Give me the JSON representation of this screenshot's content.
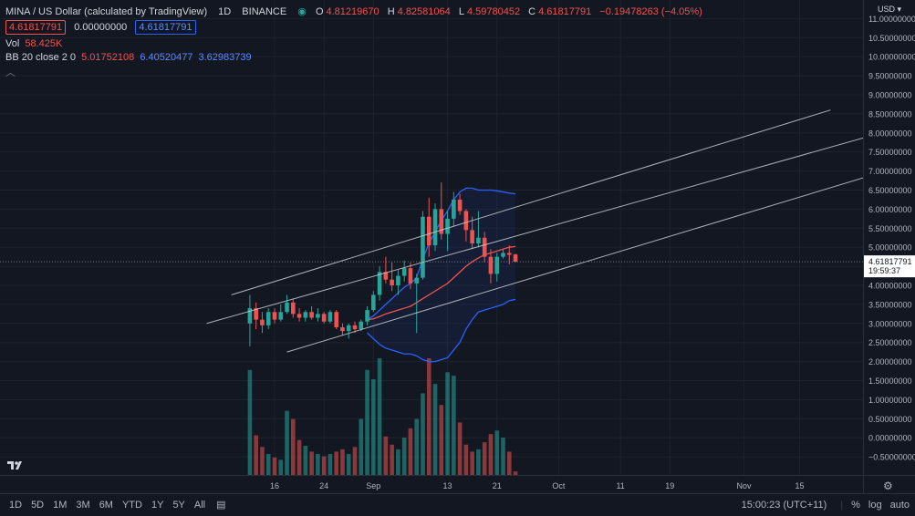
{
  "header": {
    "title": "MINA / US Dollar (calculated by TradingView)",
    "interval": "1D",
    "exchange": "BINANCE",
    "ohlc": [
      {
        "label": "O",
        "value": "4.81219670"
      },
      {
        "label": "H",
        "value": "4.82581064"
      },
      {
        "label": "L",
        "value": "4.59780452"
      },
      {
        "label": "C",
        "value": "4.61817791"
      }
    ],
    "change": "−0.19478263 (−4.05%)",
    "price_pills": [
      "4.61817791",
      "0.00000000",
      "4.61817791"
    ],
    "volume_label": "Vol",
    "volume_value": "58.425K",
    "bb_label": "BB 20 close 2 0",
    "bb_values": [
      "5.01752108",
      "6.40520477",
      "3.62983739"
    ]
  },
  "price_scale": {
    "currency": "USD",
    "last_price": "4.61817791",
    "countdown": "19:59:37"
  },
  "bottom_bar": {
    "timeframes": [
      "1D",
      "5D",
      "1M",
      "3M",
      "6M",
      "YTD",
      "1Y",
      "5Y",
      "All"
    ],
    "clock": "15:00:23 (UTC+11)",
    "percent": "%",
    "log": "log",
    "auto": "auto"
  },
  "colors": {
    "background": "#131722",
    "up": "#26a69a",
    "down": "#ef5350",
    "bb_band": "#2962ff",
    "bb_basis": "#ef5350",
    "channel": "#c8cbd2"
  },
  "chart_data": {
    "type": "candlestick",
    "x_tick_labels": [
      "16",
      "24",
      "Sep",
      "13",
      "21",
      "Oct",
      "11",
      "19",
      "Nov",
      "15"
    ],
    "y_tick_labels": [
      "11.00000000",
      "10.50000000",
      "10.00000000",
      "9.50000000",
      "9.00000000",
      "8.50000000",
      "8.00000000",
      "7.50000000",
      "7.00000000",
      "6.50000000",
      "6.00000000",
      "5.50000000",
      "5.00000000",
      "4.50000000",
      "4.00000000",
      "3.50000000",
      "3.00000000",
      "2.50000000",
      "2.00000000",
      "1.50000000",
      "1.00000000",
      "0.50000000",
      "0.00000000",
      "−0.50000000"
    ],
    "ylim": [
      -1.0,
      11.2
    ],
    "x_tick_day_index": [
      0,
      8,
      16,
      28,
      36,
      46,
      56,
      64,
      76,
      85
    ],
    "first_candle_day": -4,
    "candles": [
      [
        3.0,
        3.75,
        2.4,
        3.4
      ],
      [
        3.4,
        3.55,
        2.85,
        3.1
      ],
      [
        3.1,
        3.3,
        2.75,
        2.95
      ],
      [
        2.95,
        3.4,
        2.85,
        3.3
      ],
      [
        3.3,
        3.4,
        3.0,
        3.1
      ],
      [
        3.1,
        3.5,
        3.05,
        3.3
      ],
      [
        3.3,
        3.75,
        3.25,
        3.55
      ],
      [
        3.55,
        3.65,
        3.15,
        3.25
      ],
      [
        3.25,
        3.4,
        3.05,
        3.15
      ],
      [
        3.15,
        3.35,
        3.05,
        3.3
      ],
      [
        3.3,
        3.45,
        3.1,
        3.15
      ],
      [
        3.15,
        3.4,
        3.05,
        3.25
      ],
      [
        3.25,
        3.3,
        3.0,
        3.05
      ],
      [
        3.05,
        3.35,
        3.0,
        3.3
      ],
      [
        3.3,
        3.35,
        2.85,
        2.9
      ],
      [
        2.9,
        3.0,
        2.7,
        2.8
      ],
      [
        2.8,
        3.0,
        2.6,
        2.95
      ],
      [
        2.95,
        3.05,
        2.75,
        2.85
      ],
      [
        2.85,
        3.1,
        2.8,
        3.05
      ],
      [
        3.05,
        3.45,
        2.95,
        3.35
      ],
      [
        3.35,
        3.85,
        3.3,
        3.75
      ],
      [
        3.75,
        4.5,
        3.6,
        4.35
      ],
      [
        4.35,
        4.75,
        4.05,
        4.15
      ],
      [
        4.15,
        4.6,
        3.85,
        4.0
      ],
      [
        4.0,
        4.4,
        3.75,
        4.25
      ],
      [
        4.25,
        4.65,
        4.1,
        4.45
      ],
      [
        4.45,
        4.6,
        3.9,
        4.05
      ],
      [
        4.05,
        4.3,
        2.75,
        4.2
      ],
      [
        4.2,
        5.95,
        4.15,
        5.8
      ],
      [
        5.8,
        6.3,
        4.75,
        5.05
      ],
      [
        5.05,
        6.15,
        4.9,
        6.0
      ],
      [
        6.0,
        6.7,
        5.2,
        5.35
      ],
      [
        5.35,
        5.95,
        4.9,
        5.75
      ],
      [
        5.75,
        6.45,
        5.55,
        6.25
      ],
      [
        6.25,
        6.4,
        5.85,
        5.95
      ],
      [
        5.95,
        6.0,
        5.15,
        5.45
      ],
      [
        5.45,
        5.8,
        4.95,
        5.1
      ],
      [
        5.1,
        5.95,
        5.0,
        5.25
      ],
      [
        5.25,
        5.4,
        4.6,
        4.75
      ],
      [
        4.75,
        4.95,
        4.05,
        4.3
      ],
      [
        4.3,
        4.85,
        4.1,
        4.75
      ],
      [
        4.75,
        4.95,
        4.7,
        4.85
      ],
      [
        4.85,
        5.05,
        4.55,
        4.8
      ],
      [
        4.81,
        4.83,
        4.6,
        4.62
      ]
    ],
    "volume_pct": [
      0.9,
      0.34,
      0.24,
      0.18,
      0.15,
      0.13,
      0.55,
      0.48,
      0.3,
      0.25,
      0.2,
      0.18,
      0.16,
      0.18,
      0.2,
      0.22,
      0.18,
      0.24,
      0.48,
      0.9,
      0.82,
      1.0,
      0.33,
      0.26,
      0.22,
      0.32,
      0.4,
      0.48,
      0.7,
      1.0,
      0.78,
      0.6,
      0.88,
      0.85,
      0.45,
      0.26,
      0.2,
      0.22,
      0.28,
      0.35,
      0.38,
      0.32,
      0.2,
      0.03
    ],
    "bb_upper": [
      null,
      null,
      null,
      null,
      null,
      null,
      null,
      null,
      null,
      null,
      null,
      null,
      null,
      null,
      null,
      null,
      null,
      null,
      null,
      3.1,
      3.2,
      3.35,
      3.5,
      3.65,
      3.8,
      3.95,
      4.05,
      4.2,
      4.7,
      5.1,
      5.4,
      5.7,
      5.95,
      6.25,
      6.45,
      6.55,
      6.55,
      6.5,
      6.5,
      6.5,
      6.48,
      6.45,
      6.42,
      6.4
    ],
    "bb_basis": [
      null,
      null,
      null,
      null,
      null,
      null,
      null,
      null,
      null,
      null,
      null,
      null,
      null,
      null,
      null,
      null,
      null,
      null,
      null,
      3.1,
      3.12,
      3.18,
      3.25,
      3.3,
      3.35,
      3.4,
      3.45,
      3.55,
      3.65,
      3.75,
      3.85,
      3.95,
      4.05,
      4.2,
      4.35,
      4.5,
      4.62,
      4.72,
      4.8,
      4.85,
      4.9,
      4.95,
      5.0,
      5.02
    ],
    "bb_lower": [
      null,
      null,
      null,
      null,
      null,
      null,
      null,
      null,
      null,
      null,
      null,
      null,
      null,
      null,
      null,
      null,
      null,
      null,
      null,
      2.75,
      2.6,
      2.45,
      2.35,
      2.3,
      2.25,
      2.2,
      2.2,
      2.15,
      2.05,
      2.0,
      2.0,
      2.05,
      2.1,
      2.3,
      2.5,
      2.85,
      3.1,
      3.3,
      3.35,
      3.4,
      3.45,
      3.5,
      3.6,
      3.63
    ],
    "channel_lines": [
      {
        "from": {
          "day": -7,
          "price": 3.75
        },
        "to": {
          "day": 90,
          "price": 8.6
        }
      },
      {
        "from": {
          "day": -11,
          "price": 3.0
        },
        "to": {
          "day": 96,
          "price": 7.9
        }
      },
      {
        "from": {
          "day": 2,
          "price": 2.25
        },
        "to": {
          "day": 100,
          "price": 7.05
        }
      }
    ]
  }
}
